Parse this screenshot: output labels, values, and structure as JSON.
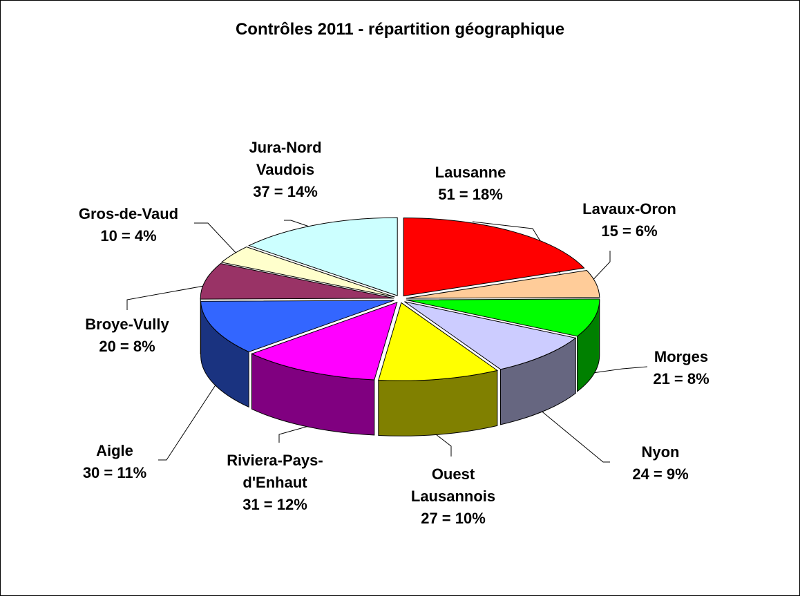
{
  "chart_data": {
    "type": "pie3d",
    "title": "Contrôles 2011 - répartition géographique",
    "categories": [
      "Lausanne",
      "Lavaux-Oron",
      "Morges",
      "Nyon",
      "Ouest Lausannois",
      "Riviera-Pays-d'Enhaut",
      "Aigle",
      "Broye-Vully",
      "Gros-de-Vaud",
      "Jura-Nord Vaudois"
    ],
    "values": [
      51,
      15,
      21,
      24,
      27,
      31,
      30,
      20,
      10,
      37
    ],
    "value_labels": [
      "51 = 18%",
      "15 = 6%",
      "21 = 8%",
      "24 = 9%",
      "27 = 10%",
      "31 = 12%",
      "30 = 11%",
      "20 = 8%",
      "10 = 4%",
      "37 = 14%"
    ],
    "colors": [
      "#ff0000",
      "#ffcc99",
      "#00ff00",
      "#ccccff",
      "#ffff00",
      "#ff00ff",
      "#3366ff",
      "#993366",
      "#ffffcc",
      "#ccffff"
    ]
  }
}
